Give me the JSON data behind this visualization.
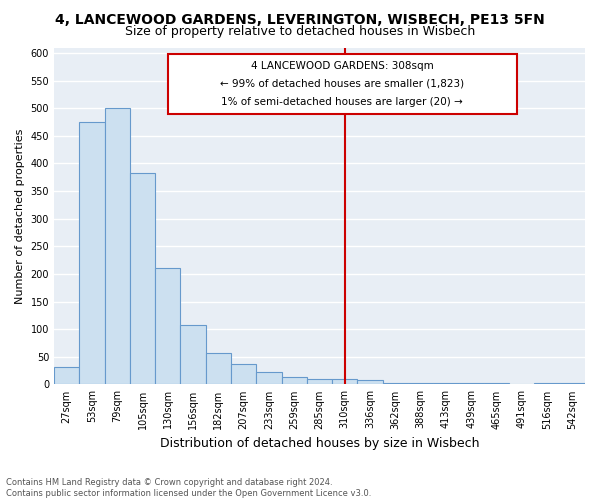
{
  "title1": "4, LANCEWOOD GARDENS, LEVERINGTON, WISBECH, PE13 5FN",
  "title2": "Size of property relative to detached houses in Wisbech",
  "xlabel": "Distribution of detached houses by size in Wisbech",
  "ylabel": "Number of detached properties",
  "categories": [
    "27sqm",
    "53sqm",
    "79sqm",
    "105sqm",
    "130sqm",
    "156sqm",
    "182sqm",
    "207sqm",
    "233sqm",
    "259sqm",
    "285sqm",
    "310sqm",
    "336sqm",
    "362sqm",
    "388sqm",
    "413sqm",
    "439sqm",
    "465sqm",
    "491sqm",
    "516sqm",
    "542sqm"
  ],
  "values": [
    32,
    475,
    500,
    382,
    210,
    107,
    57,
    37,
    22,
    13,
    10,
    10,
    8,
    3,
    3,
    3,
    2,
    2,
    0,
    2,
    2
  ],
  "bar_color": "#cce0f0",
  "bar_edgecolor": "#6699cc",
  "vline_color": "#cc0000",
  "box_text_line1": "4 LANCEWOOD GARDENS: 308sqm",
  "box_text_line2": "← 99% of detached houses are smaller (1,823)",
  "box_text_line3": "1% of semi-detached houses are larger (20) →",
  "box_edgecolor": "#cc0000",
  "box_facecolor": "white",
  "ylim": [
    0,
    610
  ],
  "yticks": [
    0,
    50,
    100,
    150,
    200,
    250,
    300,
    350,
    400,
    450,
    500,
    550,
    600
  ],
  "background_color": "#ffffff",
  "plot_bg_color": "#e8eef5",
  "grid_color": "#ffffff",
  "footer_line1": "Contains HM Land Registry data © Crown copyright and database right 2024.",
  "footer_line2": "Contains public sector information licensed under the Open Government Licence v3.0.",
  "title1_fontsize": 10,
  "title2_fontsize": 9,
  "xlabel_fontsize": 9,
  "ylabel_fontsize": 8,
  "tick_fontsize": 7,
  "footer_fontsize": 6
}
